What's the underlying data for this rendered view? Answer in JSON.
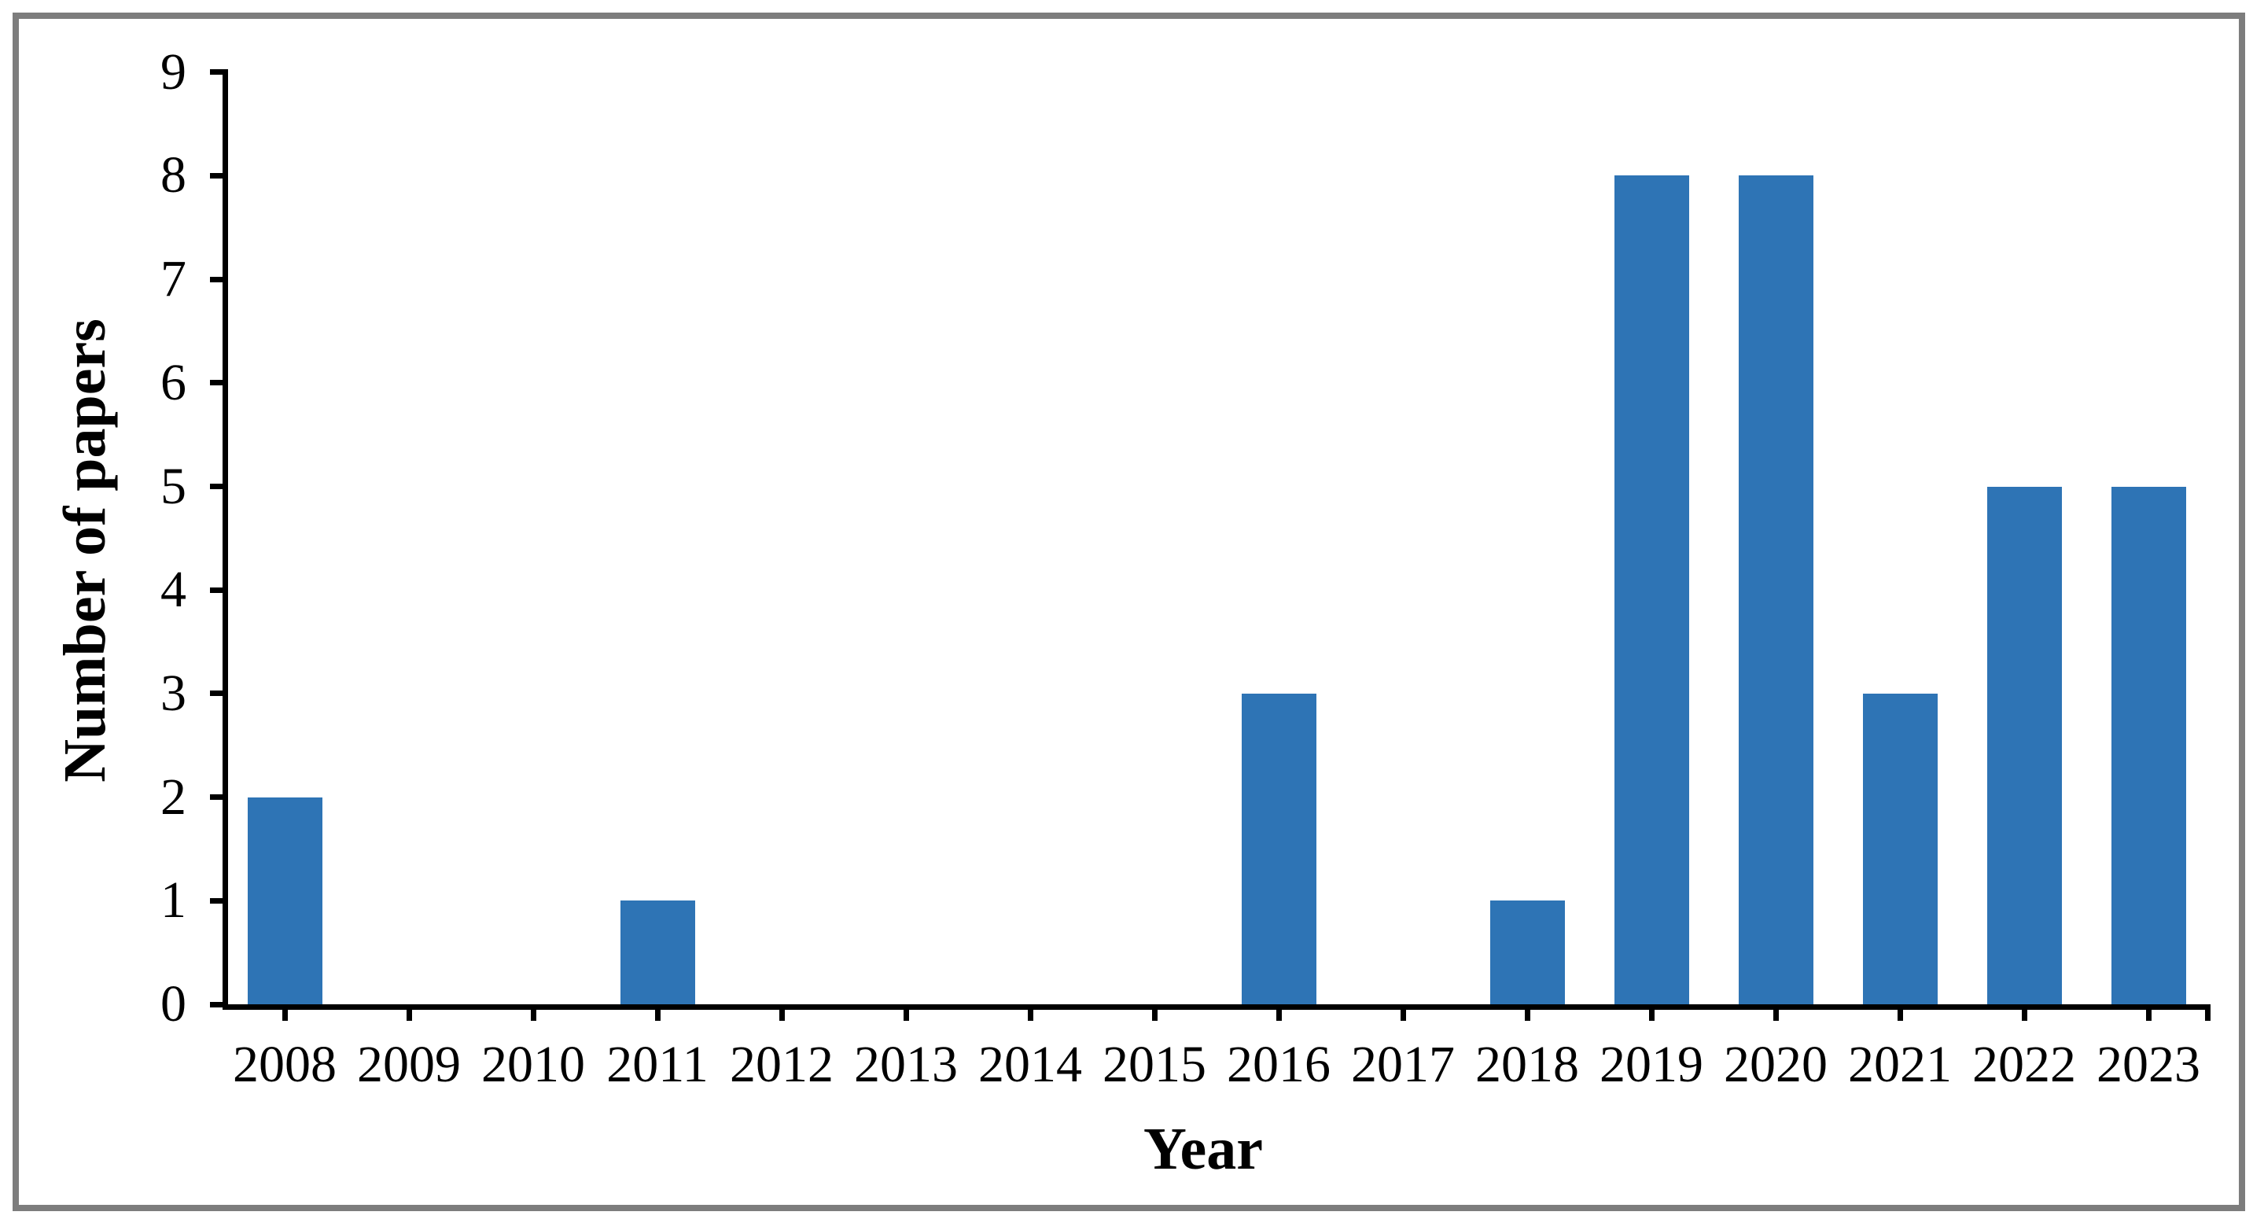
{
  "chart_data": {
    "type": "bar",
    "title": "",
    "xlabel": "Year",
    "ylabel": "Number of papers",
    "categories": [
      "2008",
      "2009",
      "2010",
      "2011",
      "2012",
      "2013",
      "2014",
      "2015",
      "2016",
      "2017",
      "2018",
      "2019",
      "2020",
      "2021",
      "2022",
      "2023"
    ],
    "values": [
      2,
      0,
      0,
      1,
      0,
      0,
      0,
      0,
      3,
      0,
      1,
      8,
      8,
      3,
      5,
      5
    ],
    "yticks": [
      0,
      1,
      2,
      3,
      4,
      5,
      6,
      7,
      8,
      9
    ],
    "ylim": [
      0,
      9
    ],
    "grid": false,
    "legend_position": "none",
    "bar_color": "#2E74B5",
    "axis_color": "#000000",
    "frame_border_color": "#7D7D7D",
    "background_color": "#FFFFFF"
  }
}
